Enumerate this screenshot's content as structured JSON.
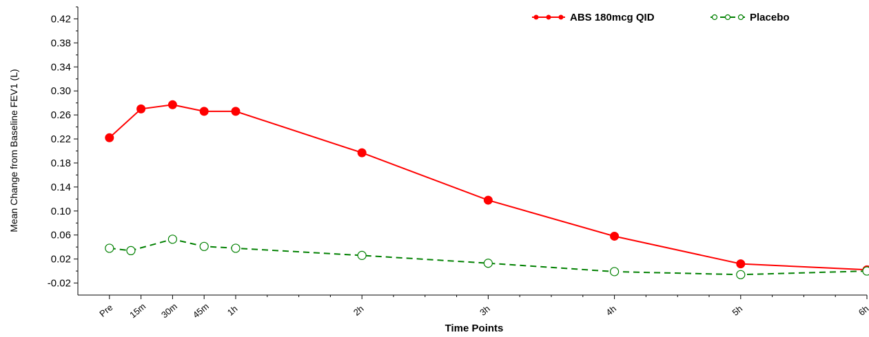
{
  "chart_data": {
    "type": "line",
    "xlabel": "Time Points",
    "ylabel": "Mean Change from Baseline FEV1 (L)",
    "ylim": [
      -0.04,
      0.44
    ],
    "y_ticks": [
      "0.42",
      "0.38",
      "0.34",
      "0.30",
      "0.26",
      "0.22",
      "0.18",
      "0.14",
      "0.10",
      "0.06",
      "0.02",
      "-0.02"
    ],
    "x_axis_hours": [
      -0.25,
      6
    ],
    "categories": [
      "Pre",
      "15m",
      "30m",
      "45m",
      "1h",
      "2h",
      "3h",
      "4h",
      "5h",
      "6h"
    ],
    "x_hours": [
      0,
      0.25,
      0.5,
      0.75,
      1,
      2,
      3,
      4,
      5,
      6
    ],
    "legend_position": "top-right",
    "grid": false,
    "series": [
      {
        "name": "ABS 180mcg QID",
        "color": "#ff0000",
        "line_style": "solid",
        "marker": "filled-circle",
        "x_hours": [
          0,
          0.25,
          0.5,
          0.75,
          1,
          2,
          3,
          4,
          5,
          6
        ],
        "values": [
          0.222,
          0.27,
          0.277,
          0.266,
          0.266,
          0.197,
          0.118,
          0.058,
          0.012,
          0.002
        ]
      },
      {
        "name": "Placebo",
        "color": "#008000",
        "line_style": "dashed",
        "marker": "open-circle",
        "x_hours": [
          0,
          0.17,
          0.5,
          0.75,
          1,
          2,
          3,
          4,
          5,
          6
        ],
        "values": [
          0.038,
          0.034,
          0.053,
          0.041,
          0.038,
          0.026,
          0.013,
          -0.001,
          -0.006,
          0.0
        ]
      }
    ]
  }
}
